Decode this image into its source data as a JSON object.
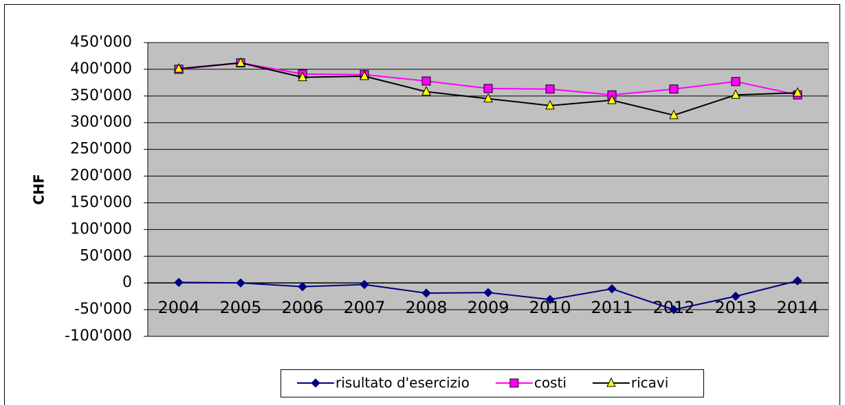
{
  "chart_data": {
    "type": "line",
    "y_label": "CHF",
    "categories": [
      "2004",
      "2005",
      "2006",
      "2007",
      "2008",
      "2009",
      "2010",
      "2011",
      "2012",
      "2013",
      "2014"
    ],
    "series": [
      {
        "name": "risultato d'esercizio",
        "color": "#000080",
        "marker": "diamond",
        "values": [
          1000,
          0,
          -7000,
          -3000,
          -19000,
          -18000,
          -31000,
          -11000,
          -50000,
          -25000,
          4000
        ]
      },
      {
        "name": "costi",
        "color": "#ff00ff",
        "marker": "square",
        "marker_color": "#ff00ff",
        "values": [
          400000,
          412000,
          391000,
          390000,
          378000,
          364000,
          363000,
          352000,
          363000,
          377000,
          352000
        ]
      },
      {
        "name": "ricavi",
        "color": "#000000",
        "marker": "triangle",
        "marker_color": "#ffff00",
        "values": [
          401000,
          412000,
          385000,
          387000,
          358000,
          345000,
          332000,
          342000,
          314000,
          352000,
          356000
        ]
      }
    ],
    "ylim": [
      -100000,
      450000
    ],
    "yticks": [
      {
        "value": -100000,
        "label": "-100'000"
      },
      {
        "value": -50000,
        "label": "-50'000"
      },
      0,
      {
        "value": 50000,
        "label": "50'000"
      },
      {
        "value": 100000,
        "label": "100'000"
      },
      {
        "value": 150000,
        "label": "150'000"
      },
      {
        "value": 200000,
        "label": "200'000"
      },
      {
        "value": 250000,
        "label": "250'000"
      },
      {
        "value": 300000,
        "label": "300'000"
      },
      {
        "value": 350000,
        "label": "350'000"
      },
      {
        "value": 400000,
        "label": "400'000"
      },
      {
        "value": 450000,
        "label": "450'000"
      }
    ],
    "grid": true,
    "legend": "bottom"
  }
}
